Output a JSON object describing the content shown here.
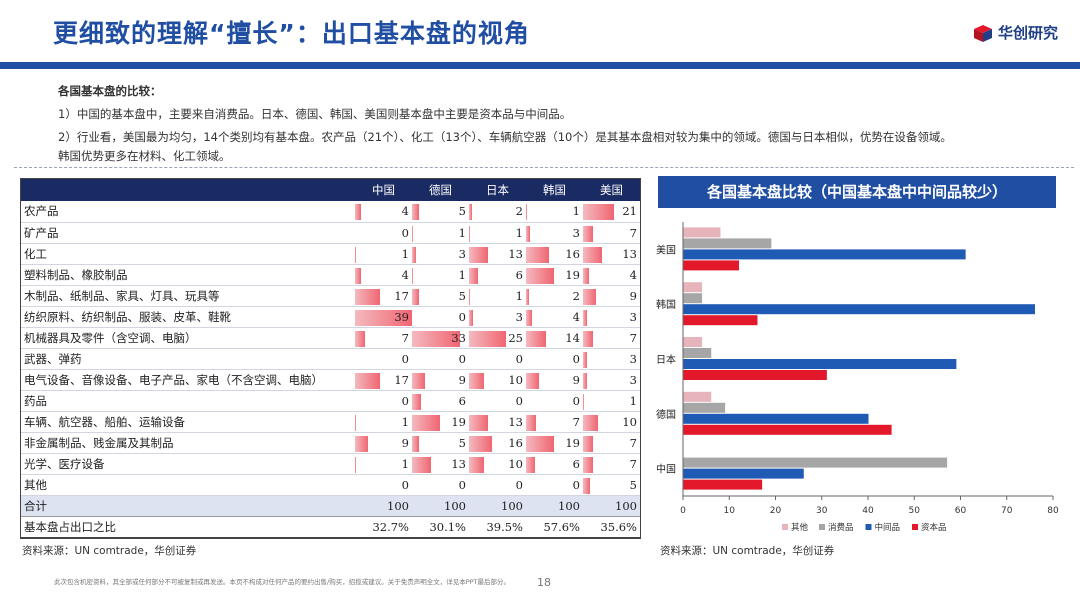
{
  "header": {
    "title": "更细致的理解“擅长”：出口基本盘的视角",
    "brand": "华创研究"
  },
  "summary": {
    "heading": "各国基本盘的比较：",
    "point1": "1）中国的基本盘中，主要来自消费品。日本、德国、韩国、美国则基本盘中主要是资本品与中间品。",
    "point2a": "2）行业看，美国最为均匀，14个类别均有基本盘。农产品（21个）、化工（13个）、车辆航空器（10个）是其基本盘相对较为集中的领域。德国与日本相似，优势在设备领域。",
    "point2b": "韩国优势更多在材料、化工领域。"
  },
  "table": {
    "columns": [
      "中国",
      "德国",
      "日本",
      "韩国",
      "美国"
    ],
    "bar_max": 39,
    "rows": [
      {
        "label": "农产品",
        "values": [
          4,
          5,
          2,
          1,
          21
        ]
      },
      {
        "label": "矿产品",
        "values": [
          0,
          1,
          1,
          3,
          7
        ]
      },
      {
        "label": "化工",
        "values": [
          1,
          3,
          13,
          16,
          13
        ]
      },
      {
        "label": "塑料制品、橡胶制品",
        "values": [
          4,
          1,
          6,
          19,
          4
        ]
      },
      {
        "label": "木制品、纸制品、家具、灯具、玩具等",
        "values": [
          17,
          5,
          1,
          2,
          9
        ]
      },
      {
        "label": "纺织原料、纺织制品、服装、皮革、鞋靴",
        "values": [
          39,
          0,
          3,
          4,
          3
        ]
      },
      {
        "label": "机械器具及零件（含空调、电脑）",
        "values": [
          7,
          33,
          25,
          14,
          7
        ]
      },
      {
        "label": "武器、弹药",
        "values": [
          0,
          0,
          0,
          0,
          3
        ]
      },
      {
        "label": "电气设备、音像设备、电子产品、家电（不含空调、电脑）",
        "values": [
          17,
          9,
          10,
          9,
          3
        ]
      },
      {
        "label": "药品",
        "values": [
          0,
          6,
          0,
          0,
          1
        ]
      },
      {
        "label": "车辆、航空器、船舶、运输设备",
        "values": [
          1,
          19,
          13,
          7,
          10
        ]
      },
      {
        "label": "非金属制品、贱金属及其制品",
        "values": [
          9,
          5,
          16,
          19,
          7
        ]
      },
      {
        "label": "光学、医疗设备",
        "values": [
          1,
          13,
          10,
          6,
          7
        ]
      },
      {
        "label": "其他",
        "values": [
          0,
          0,
          0,
          0,
          5
        ]
      }
    ],
    "total_label": "合计",
    "totals": [
      "100",
      "100",
      "100",
      "100",
      "100"
    ],
    "share_label": "基本盘占出口之比",
    "shares": [
      "32.7%",
      "30.1%",
      "39.5%",
      "57.6%",
      "35.6%"
    ]
  },
  "chart_data": {
    "type": "bar",
    "orientation": "horizontal",
    "title": "各国基本盘比较（中国基本盘中中间品较少）",
    "categories": [
      "美国",
      "韩国",
      "日本",
      "德国",
      "中国"
    ],
    "series": [
      {
        "name": "其他",
        "color": "#e8b4bc",
        "values": [
          8,
          4,
          4,
          6,
          0
        ]
      },
      {
        "name": "消费品",
        "color": "#a6a6a6",
        "values": [
          19,
          4,
          6,
          9,
          57
        ]
      },
      {
        "name": "中间品",
        "color": "#1f5bb5",
        "values": [
          61,
          76,
          59,
          40,
          26
        ]
      },
      {
        "name": "资本品",
        "color": "#e3192b",
        "values": [
          12,
          16,
          31,
          45,
          17
        ]
      }
    ],
    "xlim": [
      0,
      80
    ],
    "xticks": [
      0,
      10,
      20,
      30,
      40,
      50,
      60,
      70,
      80
    ],
    "legend": "bottom"
  },
  "sources": {
    "left": "资料来源：UN comtrade，华创证券",
    "right": "资料来源：UN comtrade，华创证券"
  },
  "footer": {
    "disclaimer": "此次包含机密资料，其全部或任何部分不可被复制或再发送。本页不构成对任何产品的要约出售/购买，招揽或建议。关于免责声明全文，详见本PPT最后部分。",
    "page": "18"
  }
}
